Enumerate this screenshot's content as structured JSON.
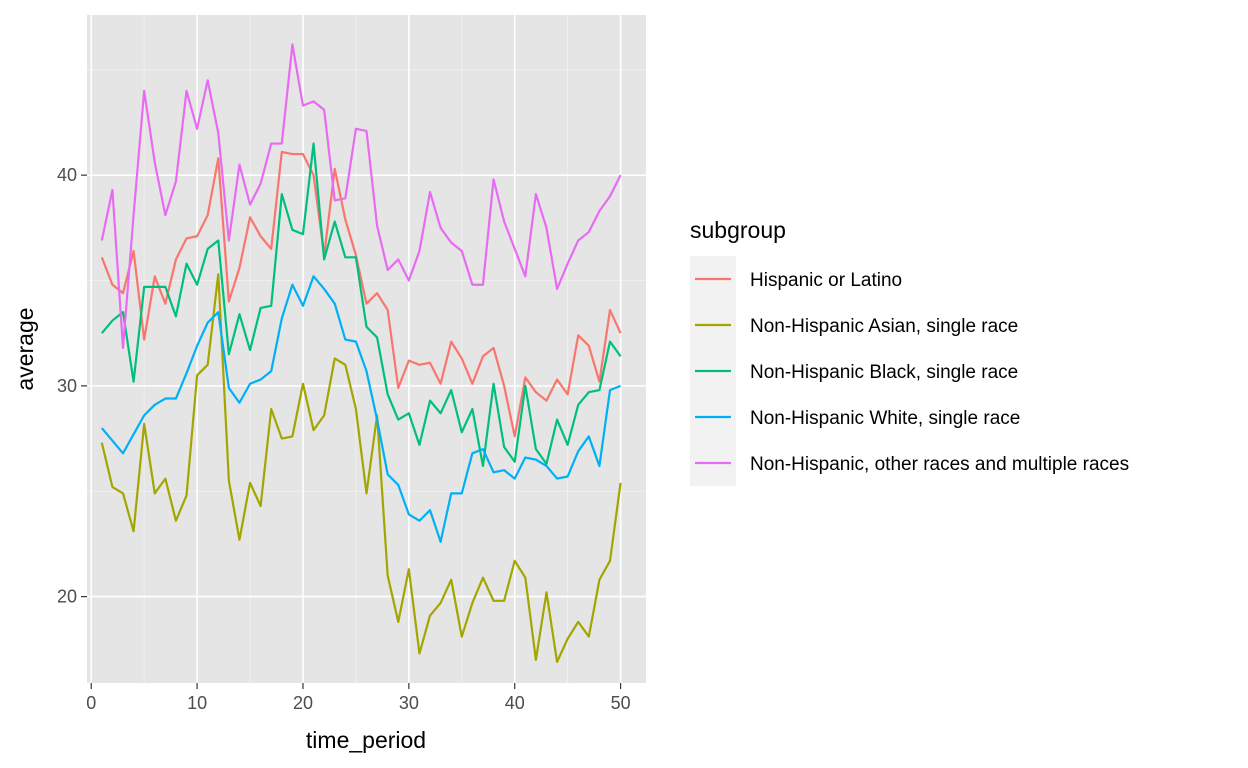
{
  "chart_data": {
    "type": "line",
    "xlabel": "time_period",
    "ylabel": "average",
    "xlim": [
      -0.4,
      52.4
    ],
    "ylim": [
      15.9,
      47.6
    ],
    "xticks": [
      0,
      10,
      20,
      30,
      40,
      50
    ],
    "yticks": [
      20,
      30,
      40
    ],
    "xtick_labels": [
      "0",
      "10",
      "20",
      "30",
      "40",
      "50"
    ],
    "ytick_labels": [
      "20",
      "30",
      "40"
    ],
    "grid": true,
    "background": "#e5e5e5",
    "legend": {
      "title": "subgroup",
      "placement": "right"
    },
    "x": [
      1,
      2,
      3,
      4,
      5,
      6,
      7,
      8,
      9,
      10,
      11,
      12,
      13,
      14,
      15,
      16,
      17,
      18,
      19,
      20,
      21,
      22,
      23,
      24,
      25,
      26,
      27,
      28,
      29,
      30,
      31,
      32,
      33,
      34,
      35,
      36,
      37,
      38,
      39,
      40,
      41,
      42,
      43,
      44,
      45,
      46,
      47,
      48,
      49,
      50
    ],
    "series": [
      {
        "name": "Hispanic or Latino",
        "color": "#f8766d",
        "values": [
          36.1,
          34.8,
          34.4,
          36.4,
          32.2,
          35.2,
          33.9,
          36.0,
          37.0,
          37.1,
          38.1,
          40.8,
          34.0,
          35.6,
          38.0,
          37.1,
          36.5,
          41.1,
          41.0,
          41.0,
          40.0,
          36.2,
          40.3,
          37.9,
          36.2,
          33.9,
          34.4,
          33.6,
          29.9,
          31.2,
          31.0,
          31.1,
          30.1,
          32.1,
          31.3,
          30.1,
          31.4,
          31.8,
          30.0,
          27.6,
          30.4,
          29.7,
          29.3,
          30.3,
          29.6,
          32.4,
          31.9,
          30.2,
          33.6,
          32.5
        ]
      },
      {
        "name": "Non-Hispanic Asian, single race",
        "color": "#a3a500",
        "values": [
          27.3,
          25.2,
          24.9,
          23.1,
          28.2,
          24.9,
          25.6,
          23.6,
          24.8,
          30.5,
          31.0,
          35.3,
          25.5,
          22.7,
          25.4,
          24.3,
          28.9,
          27.5,
          27.6,
          30.1,
          27.9,
          28.6,
          31.3,
          31.0,
          28.9,
          24.9,
          28.6,
          21.0,
          18.8,
          21.3,
          17.3,
          19.1,
          19.7,
          20.8,
          18.1,
          19.7,
          20.9,
          19.8,
          19.8,
          21.7,
          20.9,
          17.0,
          20.2,
          16.9,
          18.0,
          18.8,
          18.1,
          20.8,
          21.7,
          25.4
        ]
      },
      {
        "name": "Non-Hispanic Black, single race",
        "color": "#00bf7d",
        "values": [
          32.5,
          33.1,
          33.5,
          30.2,
          34.7,
          34.7,
          34.7,
          33.3,
          35.8,
          34.8,
          36.5,
          36.9,
          31.5,
          33.4,
          31.7,
          33.7,
          33.8,
          39.1,
          37.4,
          37.2,
          41.5,
          36.0,
          37.8,
          36.1,
          36.1,
          32.8,
          32.3,
          29.6,
          28.4,
          28.7,
          27.2,
          29.3,
          28.7,
          29.8,
          27.8,
          28.9,
          26.2,
          30.1,
          27.1,
          26.4,
          30.0,
          27.0,
          26.3,
          28.4,
          27.2,
          29.1,
          29.7,
          29.8,
          32.1,
          31.4
        ]
      },
      {
        "name": "Non-Hispanic White, single race",
        "color": "#00b0f6",
        "values": [
          28.0,
          27.4,
          26.8,
          27.7,
          28.6,
          29.1,
          29.4,
          29.4,
          30.6,
          31.9,
          33.0,
          33.5,
          29.9,
          29.2,
          30.1,
          30.3,
          30.7,
          33.2,
          34.8,
          33.8,
          35.2,
          34.6,
          33.9,
          32.2,
          32.1,
          30.7,
          28.4,
          25.8,
          25.3,
          23.9,
          23.6,
          24.1,
          22.6,
          24.9,
          24.9,
          26.8,
          27.0,
          25.9,
          26.0,
          25.6,
          26.6,
          26.5,
          26.2,
          25.6,
          25.7,
          26.9,
          27.6,
          26.2,
          29.8,
          30.0
        ]
      },
      {
        "name": "Non-Hispanic, other races and multiple races",
        "color": "#e76bf3",
        "values": [
          36.9,
          39.3,
          31.8,
          38.1,
          44.0,
          40.6,
          38.1,
          39.7,
          44.0,
          42.2,
          44.5,
          42.0,
          36.9,
          40.5,
          38.6,
          39.6,
          41.5,
          41.5,
          46.2,
          43.3,
          43.5,
          43.1,
          38.8,
          38.9,
          42.2,
          42.1,
          37.6,
          35.5,
          36.0,
          35.0,
          36.4,
          39.2,
          37.5,
          36.8,
          36.4,
          34.8,
          34.8,
          39.8,
          37.8,
          36.5,
          35.2,
          39.1,
          37.5,
          34.6,
          35.8,
          36.9,
          37.3,
          38.3,
          39.0,
          40.0
        ]
      }
    ]
  }
}
